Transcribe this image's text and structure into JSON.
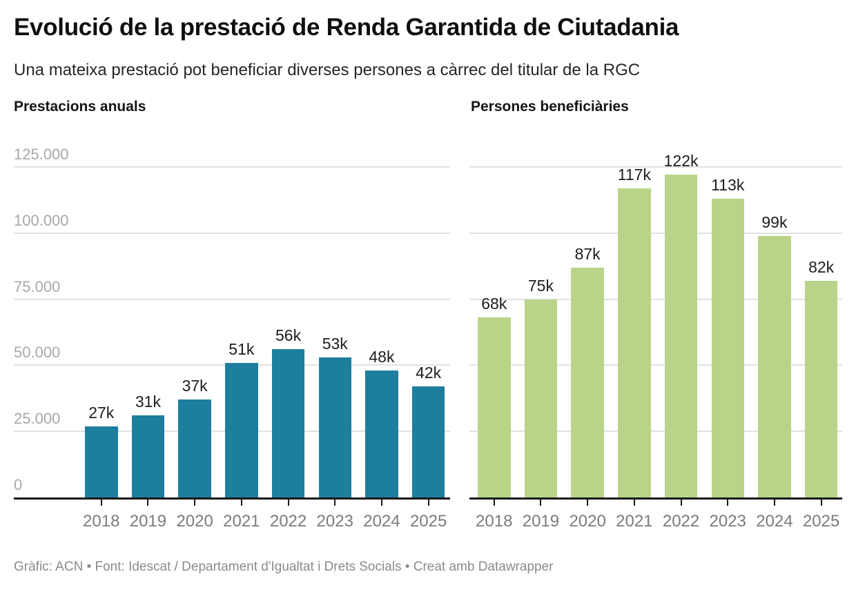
{
  "header": {
    "title": "Evolució de la prestació de Renda Garantida de Ciutadania",
    "subtitle": "Una mateixa prestació pot beneficiar diverses persones a càrrec del titular de la RGC"
  },
  "footer": {
    "text": "Gràfic: ACN • Font: Idescat / Departament d'Igualtat i Drets Socials • Creat amb Datawrapper"
  },
  "y_axis": {
    "tick_labels": [
      "0",
      "25.000",
      "50.000",
      "75.000",
      "100.000",
      "125.000"
    ],
    "tick_values": [
      0,
      25000,
      50000,
      75000,
      100000,
      125000
    ],
    "max": 125000
  },
  "chart_data": [
    {
      "type": "bar",
      "title": "Prestacions anuals",
      "categories": [
        "2018",
        "2019",
        "2020",
        "2021",
        "2022",
        "2023",
        "2024",
        "2025"
      ],
      "values": [
        27000,
        31000,
        37000,
        51000,
        56000,
        53000,
        48000,
        42000
      ],
      "value_labels": [
        "27k",
        "31k",
        "37k",
        "51k",
        "56k",
        "53k",
        "48k",
        "42k"
      ],
      "bar_color": "#1e7e9d",
      "ylim": [
        0,
        125000
      ],
      "grid": true,
      "legend": "none",
      "y_axis_labels_visible": true
    },
    {
      "type": "bar",
      "title": "Persones beneficiàries",
      "categories": [
        "2018",
        "2019",
        "2020",
        "2021",
        "2022",
        "2023",
        "2024",
        "2025"
      ],
      "values": [
        68000,
        75000,
        87000,
        117000,
        122000,
        113000,
        99000,
        82000
      ],
      "value_labels": [
        "68k",
        "75k",
        "87k",
        "117k",
        "122k",
        "113k",
        "99k",
        "82k"
      ],
      "bar_color": "#b9d488",
      "ylim": [
        0,
        125000
      ],
      "grid": true,
      "legend": "none",
      "y_axis_labels_visible": false
    }
  ]
}
